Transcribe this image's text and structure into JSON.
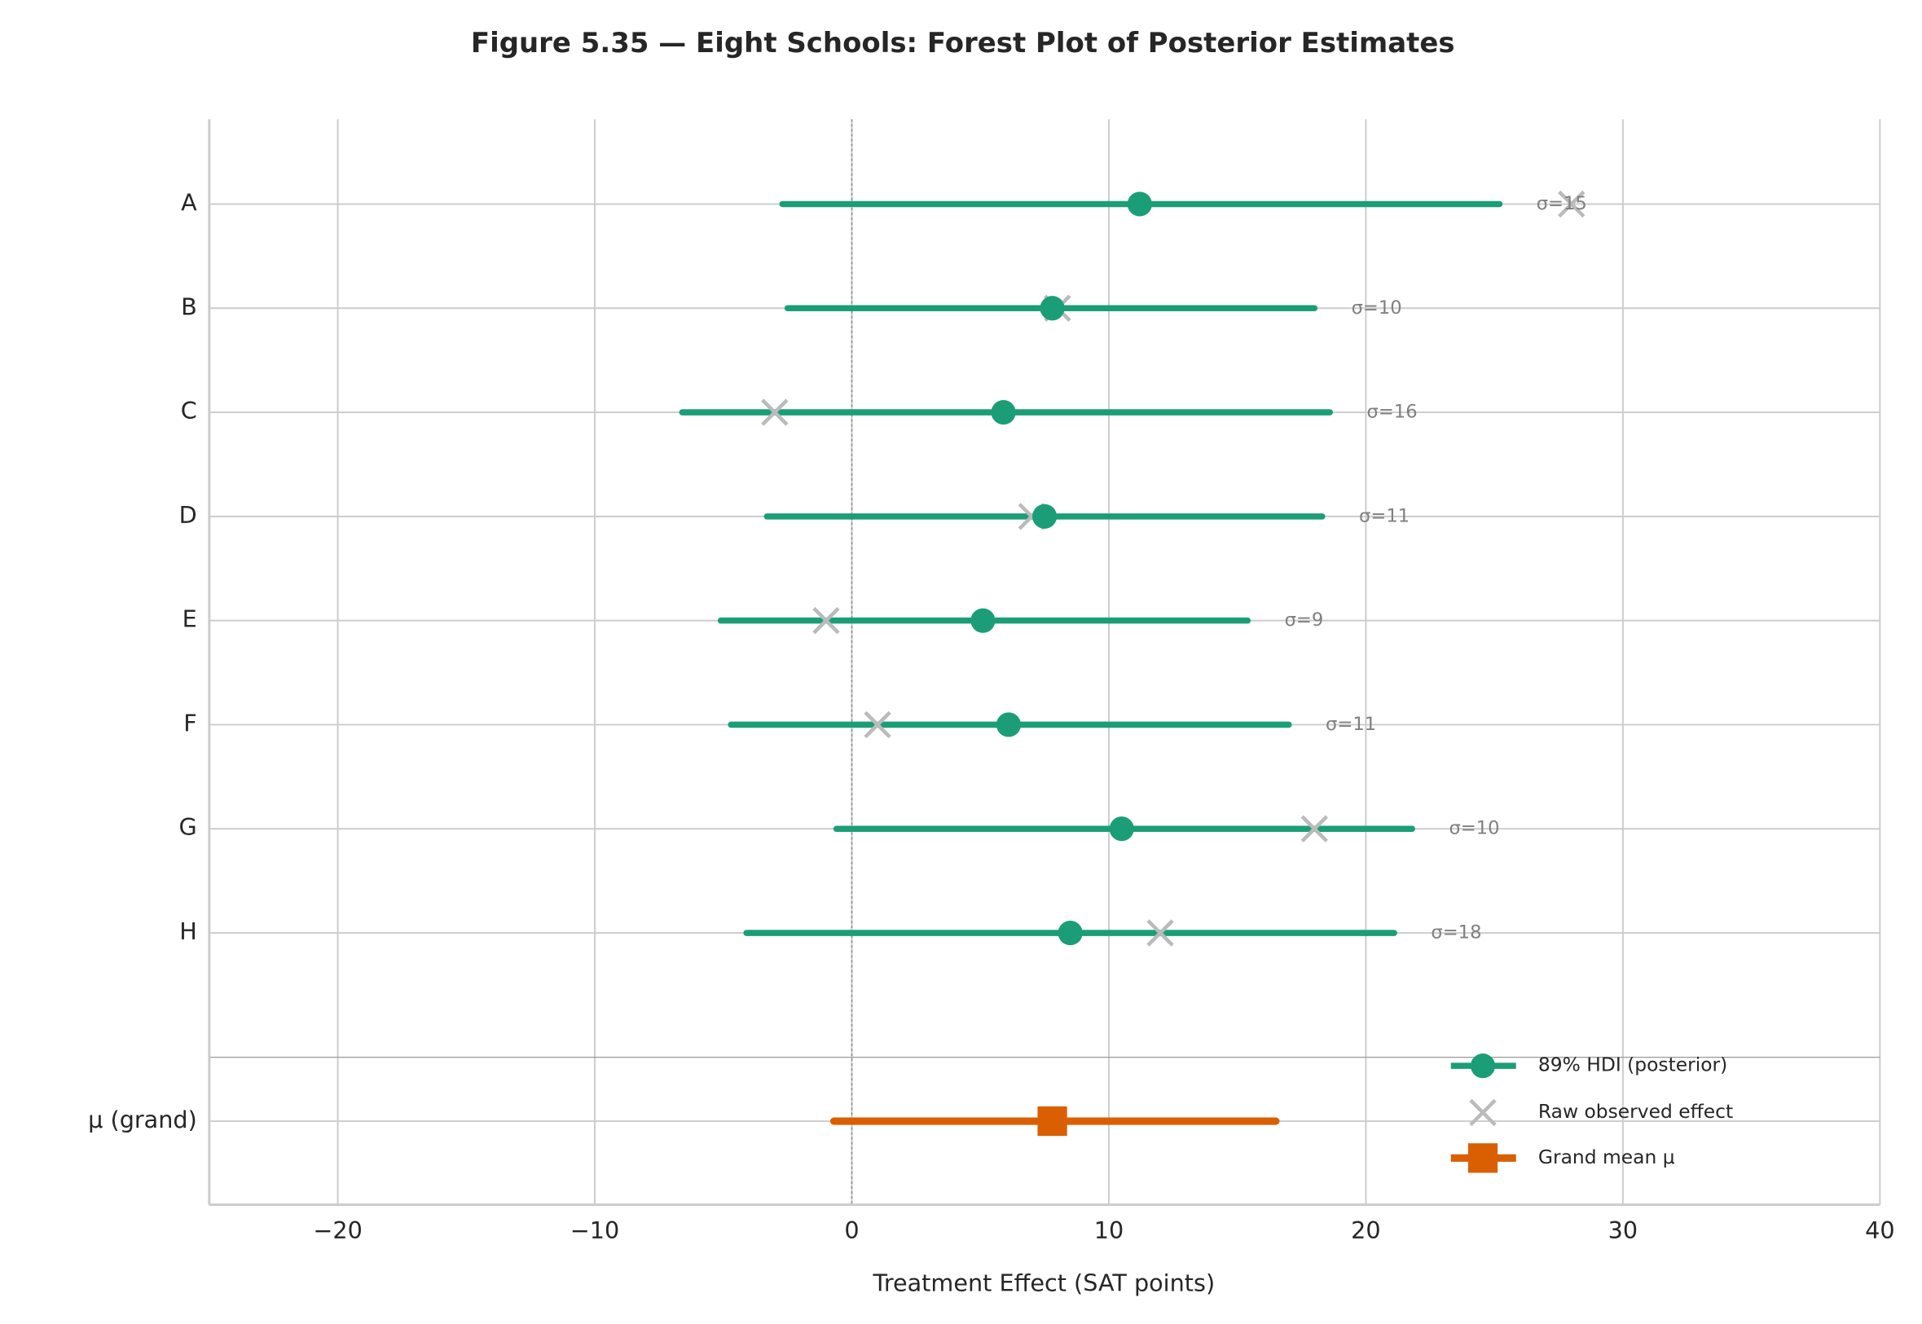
{
  "chart_data": {
    "type": "forest",
    "title": "Figure 5.35 — Eight Schools: Forest Plot of Posterior Estimates",
    "x_label": "Treatment Effect (SAT points)",
    "categories": [
      "A",
      "B",
      "C",
      "D",
      "E",
      "F",
      "G",
      "H"
    ],
    "series": [
      {
        "name": "89% HDI (posterior)",
        "color": "#1b9e77",
        "values": [
          11.2,
          7.8,
          5.9,
          7.5,
          5.1,
          6.1,
          10.5,
          8.5
        ],
        "low": [
          -2.7,
          -2.5,
          -6.6,
          -3.3,
          -5.1,
          -4.7,
          -0.6,
          -4.1
        ],
        "high": [
          25.2,
          18.0,
          18.6,
          18.3,
          15.4,
          17.0,
          21.8,
          21.1
        ]
      },
      {
        "name": "Raw observed effect",
        "color": "#bbbbbb",
        "values": [
          28,
          8,
          -3,
          7,
          -1,
          1,
          18,
          12
        ]
      }
    ],
    "annotations": [
      "σ=15",
      "σ=10",
      "σ=16",
      "σ=11",
      "σ=9",
      "σ=11",
      "σ=10",
      "σ=18"
    ],
    "grand": {
      "name": "Grand mean μ",
      "label": "μ (grand)",
      "color": "#d95f02",
      "value": 7.8,
      "low": -0.7,
      "high": 16.5
    },
    "xlim": [
      -25,
      40
    ],
    "xticks": [
      {
        "value": -20,
        "label": "−20"
      },
      {
        "value": -10,
        "label": "−10"
      },
      0,
      10,
      20,
      30,
      40
    ],
    "ref_line": 0,
    "grid": true,
    "legend": "lower right"
  }
}
